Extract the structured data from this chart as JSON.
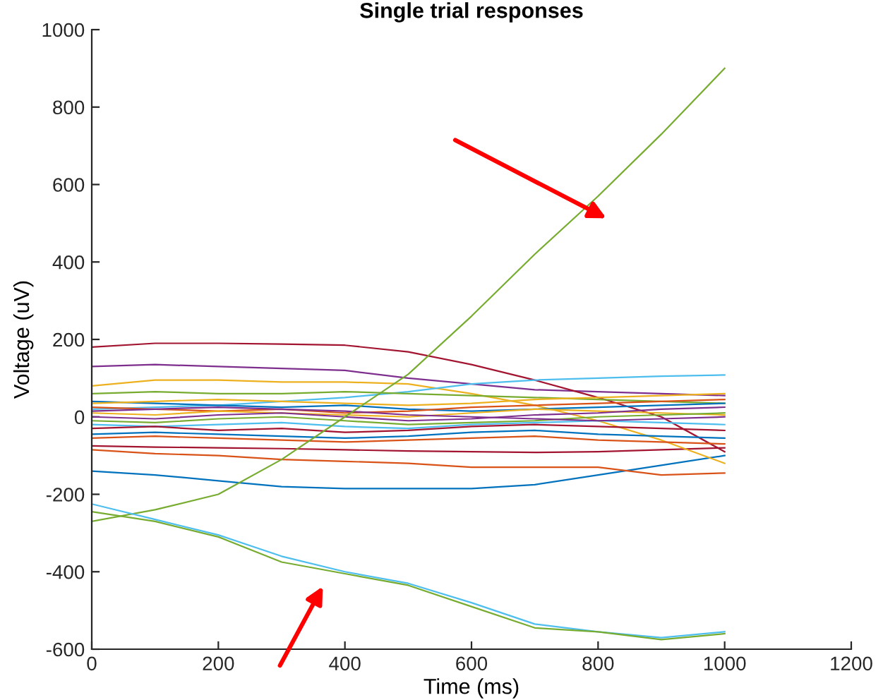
{
  "chart_data": {
    "type": "line",
    "title": "Single trial responses",
    "xlabel": "Time (ms)",
    "ylabel": "Voltage (uV)",
    "x": [
      0,
      100,
      200,
      300,
      400,
      500,
      600,
      700,
      800,
      900,
      1000
    ],
    "xlim": [
      0,
      1200
    ],
    "xticks": [
      0,
      200,
      400,
      600,
      800,
      1000,
      1200
    ],
    "ylim": [
      -600,
      1000
    ],
    "yticks": [
      -600,
      -400,
      -200,
      0,
      200,
      400,
      600,
      800,
      1000
    ],
    "grid": false,
    "legend": false,
    "marker": "none",
    "line_style": "solid",
    "series": [
      {
        "color": "#0072bd",
        "values": [
          -140,
          -150,
          -165,
          -180,
          -185,
          -185,
          -185,
          -175,
          -150,
          -125,
          -100
        ]
      },
      {
        "color": "#d95319",
        "values": [
          -85,
          -95,
          -100,
          -110,
          -115,
          -120,
          -130,
          -130,
          -130,
          -150,
          -145
        ]
      },
      {
        "color": "#a2142f",
        "values": [
          -75,
          -78,
          -80,
          -82,
          -85,
          -88,
          -90,
          -92,
          -90,
          -85,
          -80
        ]
      },
      {
        "color": "#edb120",
        "values": [
          80,
          95,
          95,
          90,
          90,
          85,
          60,
          30,
          -10,
          -60,
          -120
        ]
      },
      {
        "color": "#7e2f8e",
        "values": [
          130,
          135,
          130,
          125,
          120,
          100,
          85,
          70,
          65,
          60,
          55
        ]
      },
      {
        "color": "#a2142f",
        "values": [
          180,
          190,
          190,
          188,
          185,
          168,
          135,
          95,
          50,
          0,
          -90
        ]
      },
      {
        "color": "#4dbeee",
        "values": [
          20,
          25,
          30,
          40,
          50,
          65,
          85,
          95,
          100,
          105,
          108
        ]
      },
      {
        "color": "#77ac30",
        "values": [
          60,
          65,
          60,
          60,
          65,
          60,
          55,
          50,
          45,
          40,
          35
        ]
      },
      {
        "color": "#0072bd",
        "values": [
          40,
          35,
          30,
          25,
          30,
          20,
          15,
          20,
          25,
          30,
          35
        ]
      },
      {
        "color": "#d95319",
        "values": [
          25,
          20,
          15,
          20,
          10,
          15,
          25,
          30,
          35,
          40,
          45
        ]
      },
      {
        "color": "#edb120",
        "values": [
          10,
          5,
          15,
          10,
          5,
          0,
          10,
          20,
          15,
          10,
          5
        ]
      },
      {
        "color": "#7e2f8e",
        "values": [
          0,
          -5,
          5,
          10,
          0,
          -10,
          -5,
          5,
          10,
          20,
          25
        ]
      },
      {
        "color": "#77ac30",
        "values": [
          -10,
          -15,
          -5,
          0,
          -10,
          -20,
          -15,
          -10,
          0,
          5,
          10
        ]
      },
      {
        "color": "#4dbeee",
        "values": [
          -20,
          -25,
          -20,
          -15,
          -25,
          -30,
          -20,
          -15,
          -10,
          -15,
          -20
        ]
      },
      {
        "color": "#a2142f",
        "values": [
          -30,
          -25,
          -35,
          -30,
          -40,
          -35,
          -25,
          -20,
          -25,
          -30,
          -35
        ]
      },
      {
        "color": "#0072bd",
        "values": [
          -45,
          -40,
          -45,
          -50,
          -55,
          -50,
          -40,
          -35,
          -45,
          -50,
          -55
        ]
      },
      {
        "color": "#d95319",
        "values": [
          -55,
          -50,
          -55,
          -60,
          -65,
          -60,
          -55,
          -50,
          -60,
          -65,
          -70
        ]
      },
      {
        "color": "#edb120",
        "values": [
          35,
          40,
          45,
          40,
          35,
          30,
          35,
          45,
          50,
          55,
          60
        ]
      },
      {
        "color": "#7e2f8e",
        "values": [
          15,
          20,
          25,
          20,
          15,
          5,
          0,
          -5,
          -10,
          -5,
          0
        ]
      },
      {
        "color": "#77ac30",
        "values": [
          -270,
          -240,
          -200,
          -110,
          0,
          110,
          260,
          420,
          570,
          730,
          900
        ]
      },
      {
        "color": "#4dbeee",
        "values": [
          -225,
          -265,
          -305,
          -360,
          -400,
          -430,
          -480,
          -535,
          -555,
          -570,
          -555
        ]
      },
      {
        "color": "#77ac30",
        "values": [
          -245,
          -270,
          -310,
          -375,
          -405,
          -435,
          -490,
          -545,
          -555,
          -575,
          -560
        ]
      }
    ]
  }
}
